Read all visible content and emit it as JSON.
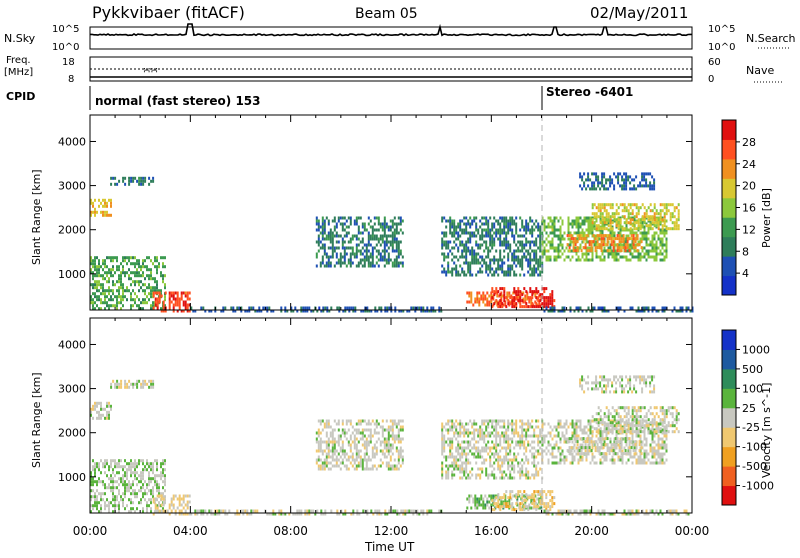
{
  "header": {
    "title": "Pykkvibaer (fitACF)",
    "beam": "Beam 05",
    "date": "02/May/2011"
  },
  "nsky_panel": {
    "label": "N.Sky",
    "left_ticks": [
      "10^5",
      "10^0"
    ],
    "right_ticks": [
      "10^5",
      "10^0"
    ],
    "right_label": "N.Search"
  },
  "freq_panel": {
    "label_line1": "Freq.",
    "label_line2": "[MHz]",
    "left_ticks": [
      "18",
      "8"
    ],
    "right_ticks": [
      "60",
      "0"
    ],
    "right_label": "Nave"
  },
  "cpid": {
    "label": "CPID",
    "program1": "normal (fast stereo) 153",
    "program2": "Stereo -6401"
  },
  "x_axis": {
    "ticks": [
      "00:00",
      "04:00",
      "08:00",
      "12:00",
      "16:00",
      "20:00",
      "00:00"
    ],
    "label": "Time UT"
  },
  "power_panel": {
    "ylabel": "Slant Range [km]",
    "yticks": [
      "4000",
      "3000",
      "2000",
      "1000"
    ],
    "colorbar_label": "Power [dB]",
    "colorbar_ticks": [
      "28",
      "24",
      "20",
      "16",
      "12",
      "8",
      "4"
    ]
  },
  "velocity_panel": {
    "ylabel": "Slant Range [km]",
    "yticks": [
      "4000",
      "3000",
      "2000",
      "1000"
    ],
    "colorbar_label": "Velocity [m s^-1]",
    "colorbar_ticks": [
      "1000",
      "500",
      "100",
      "25",
      "-25",
      "-100",
      "-500",
      "-1000"
    ]
  },
  "colors": {
    "power_scale": [
      "#1432c8",
      "#1e50b4",
      "#2e7d5a",
      "#3c9a50",
      "#8cc83c",
      "#d8c832",
      "#f09020",
      "#ff5020",
      "#e01010"
    ],
    "velocity_scale": [
      "#e01010",
      "#f06020",
      "#f0a020",
      "#f0c870",
      "#c8c8c0",
      "#5ab43c",
      "#2e8c5a",
      "#1e5aa0",
      "#1432c8"
    ],
    "gridline": "#b4b4b4"
  },
  "chart_data": [
    {
      "type": "heatmap",
      "title": "Power",
      "ylabel": "Slant Range [km]",
      "xlabel": "Time UT",
      "xlim_hours": [
        0,
        24
      ],
      "ylim": [
        180,
        4600
      ],
      "colorbar_label": "Power [dB]",
      "colorbar_range": [
        0,
        30
      ],
      "regions": [
        {
          "t": [
            0.0,
            0.8
          ],
          "r": [
            2300,
            2700
          ],
          "v": 20
        },
        {
          "t": [
            0.8,
            2.5
          ],
          "r": [
            3000,
            3200
          ],
          "v": 8
        },
        {
          "t": [
            0.0,
            3.0
          ],
          "r": [
            200,
            1400
          ],
          "v": 12
        },
        {
          "t": [
            2.5,
            4.0
          ],
          "r": [
            180,
            600
          ],
          "v": 26
        },
        {
          "t": [
            4.0,
            14.0
          ],
          "r": [
            180,
            260
          ],
          "v": 6
        },
        {
          "t": [
            9.0,
            12.5
          ],
          "r": [
            1200,
            2300
          ],
          "v": 8
        },
        {
          "t": [
            14.0,
            18.0
          ],
          "r": [
            1000,
            2300
          ],
          "v": 8
        },
        {
          "t": [
            15.0,
            18.0
          ],
          "r": [
            300,
            600
          ],
          "v": 24
        },
        {
          "t": [
            16.0,
            18.5
          ],
          "r": [
            250,
            700
          ],
          "v": 28
        },
        {
          "t": [
            18.0,
            23.0
          ],
          "r": [
            1300,
            2300
          ],
          "v": 14
        },
        {
          "t": [
            19.0,
            22.0
          ],
          "r": [
            1500,
            1900
          ],
          "v": 22
        },
        {
          "t": [
            20.0,
            23.5
          ],
          "r": [
            2000,
            2600
          ],
          "v": 18
        },
        {
          "t": [
            19.5,
            22.5
          ],
          "r": [
            2900,
            3300
          ],
          "v": 6
        },
        {
          "t": [
            18.0,
            24.0
          ],
          "r": [
            180,
            260
          ],
          "v": 6
        }
      ]
    },
    {
      "type": "heatmap",
      "title": "Velocity",
      "ylabel": "Slant Range [km]",
      "xlabel": "Time UT",
      "xlim_hours": [
        0,
        24
      ],
      "ylim": [
        180,
        4600
      ],
      "colorbar_label": "Velocity [m s^-1]",
      "colorbar_range": [
        -1000,
        1000
      ],
      "regions": [
        {
          "t": [
            0.0,
            0.8
          ],
          "r": [
            2300,
            2700
          ],
          "v": 0
        },
        {
          "t": [
            0.8,
            2.5
          ],
          "r": [
            3000,
            3200
          ],
          "v": 0
        },
        {
          "t": [
            0.0,
            3.0
          ],
          "r": [
            200,
            1400
          ],
          "v": 80
        },
        {
          "t": [
            2.5,
            4.0
          ],
          "r": [
            180,
            600
          ],
          "v": -150
        },
        {
          "t": [
            4.0,
            14.0
          ],
          "r": [
            180,
            260
          ],
          "v": 0
        },
        {
          "t": [
            9.0,
            12.5
          ],
          "r": [
            1200,
            2300
          ],
          "v": 0
        },
        {
          "t": [
            14.0,
            18.0
          ],
          "r": [
            1000,
            2300
          ],
          "v": 0
        },
        {
          "t": [
            15.0,
            18.0
          ],
          "r": [
            300,
            600
          ],
          "v": 200
        },
        {
          "t": [
            16.0,
            18.5
          ],
          "r": [
            250,
            700
          ],
          "v": -200
        },
        {
          "t": [
            18.0,
            23.0
          ],
          "r": [
            1300,
            2300
          ],
          "v": 0
        },
        {
          "t": [
            19.0,
            22.0
          ],
          "r": [
            1500,
            1900
          ],
          "v": 0
        },
        {
          "t": [
            20.0,
            23.5
          ],
          "r": [
            2000,
            2600
          ],
          "v": 0
        },
        {
          "t": [
            19.5,
            22.5
          ],
          "r": [
            2900,
            3300
          ],
          "v": 0
        },
        {
          "t": [
            18.0,
            24.0
          ],
          "r": [
            180,
            260
          ],
          "v": 0
        }
      ]
    }
  ]
}
